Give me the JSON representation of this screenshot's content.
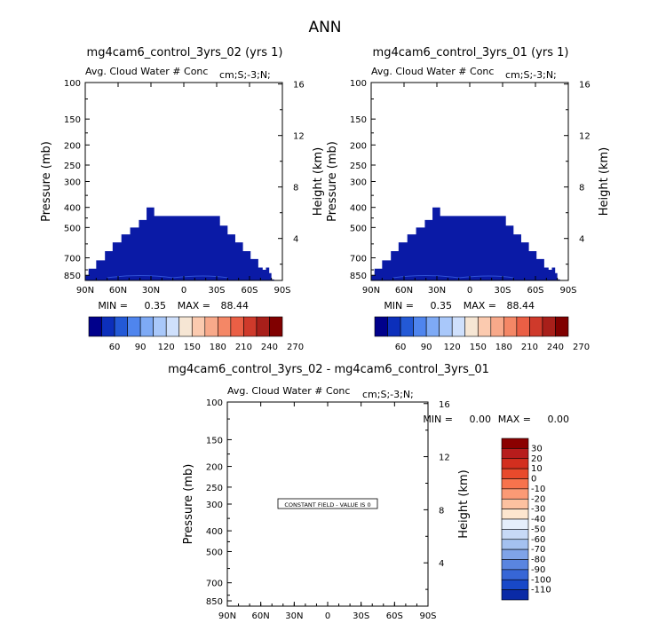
{
  "page_title": "ANN",
  "colors": {
    "fill_dark_blue": "#0a1aa6",
    "fill_contour_blue": "#2f52d6",
    "box_text": "#000000"
  },
  "panels": [
    {
      "title": "mg4cam6_control_3yrs_02 (yrs 1)",
      "subtitle": "Avg. Cloud Water # Conc",
      "units": "cm;S;-3;N;",
      "stats": {
        "min_label": "MIN =",
        "min": "0.35",
        "max_label": "MAX =",
        "max": "88.44"
      }
    },
    {
      "title": "mg4cam6_control_3yrs_01 (yrs 1)",
      "subtitle": "Avg. Cloud Water # Conc",
      "units": "cm;S;-3;N;",
      "stats": {
        "min_label": "MIN =",
        "min": "0.35",
        "max_label": "MAX =",
        "max": "88.44"
      }
    },
    {
      "title": "mg4cam6_control_3yrs_02 - mg4cam6_control_3yrs_01",
      "subtitle": "Avg. Cloud Water # Conc",
      "units": "cm;S;-3;N;",
      "stats": {
        "min_label": "MIN =",
        "min": "0.00",
        "max_label": "MAX =",
        "max": "0.00"
      },
      "note": "CONSTANT FIELD - VALUE IS 0"
    }
  ],
  "chart_data": [
    {
      "type": "heatmap",
      "title": "mg4cam6_control_3yrs_02 (yrs 1)",
      "xlabel": "",
      "ylabel": "Pressure (mb)",
      "y2label": "Height (km)",
      "x_ticks": [
        "90N",
        "60N",
        "30N",
        "0",
        "30S",
        "60S",
        "90S"
      ],
      "y_ticks": [
        100,
        150,
        200,
        250,
        300,
        400,
        500,
        700,
        850
      ],
      "y2_ticks": [
        4,
        8,
        12,
        16
      ],
      "y_scale": "log-pressure",
      "colorbar": {
        "labels": [
          "60",
          "90",
          "120",
          "150",
          "180",
          "210",
          "240",
          "270"
        ],
        "colors": [
          "#00008b",
          "#0c2fbb",
          "#2359d6",
          "#4f85ee",
          "#7eaaf5",
          "#a9c8fa",
          "#cfe0fc",
          "#f6e6d4",
          "#fbcaaf",
          "#f8a98a",
          "#f48766",
          "#ea5f45",
          "#cf3a2b",
          "#a81f1a",
          "#800000"
        ]
      },
      "region_profile": [
        {
          "lat": -90,
          "top_p": 850
        },
        {
          "lat": -87,
          "top_p": 790
        },
        {
          "lat": -80,
          "top_p": 720
        },
        {
          "lat": -72,
          "top_p": 650
        },
        {
          "lat": -65,
          "top_p": 590
        },
        {
          "lat": -57,
          "top_p": 540
        },
        {
          "lat": -49,
          "top_p": 500
        },
        {
          "lat": -41,
          "top_p": 460
        },
        {
          "lat": -34,
          "top_p": 400
        },
        {
          "lat": -27,
          "top_p": 440
        },
        {
          "lat": 26,
          "top_p": 440
        },
        {
          "lat": 33,
          "top_p": 490
        },
        {
          "lat": 40,
          "top_p": 540
        },
        {
          "lat": 47,
          "top_p": 590
        },
        {
          "lat": 54,
          "top_p": 650
        },
        {
          "lat": 61,
          "top_p": 710
        },
        {
          "lat": 68,
          "top_p": 780
        },
        {
          "lat": 72,
          "top_p": 800
        },
        {
          "lat": 75,
          "top_p": 780
        },
        {
          "lat": 78,
          "top_p": 830
        },
        {
          "lat": 80,
          "top_p": 890
        }
      ],
      "stats": {
        "min": 0.35,
        "max": 88.44
      }
    },
    {
      "type": "heatmap",
      "title": "mg4cam6_control_3yrs_01 (yrs 1)",
      "xlabel": "",
      "ylabel": "Pressure (mb)",
      "y2label": "Height (km)",
      "x_ticks": [
        "90N",
        "60N",
        "30N",
        "0",
        "30S",
        "60S",
        "90S"
      ],
      "y_ticks": [
        100,
        150,
        200,
        250,
        300,
        400,
        500,
        700,
        850
      ],
      "y2_ticks": [
        4,
        8,
        12,
        16
      ],
      "y_scale": "log-pressure",
      "colorbar": {
        "labels": [
          "60",
          "90",
          "120",
          "150",
          "180",
          "210",
          "240",
          "270"
        ],
        "colors": [
          "#00008b",
          "#0c2fbb",
          "#2359d6",
          "#4f85ee",
          "#7eaaf5",
          "#a9c8fa",
          "#cfe0fc",
          "#f6e6d4",
          "#fbcaaf",
          "#f8a98a",
          "#f48766",
          "#ea5f45",
          "#cf3a2b",
          "#a81f1a",
          "#800000"
        ]
      },
      "region_profile": [
        {
          "lat": -90,
          "top_p": 850
        },
        {
          "lat": -87,
          "top_p": 790
        },
        {
          "lat": -80,
          "top_p": 720
        },
        {
          "lat": -72,
          "top_p": 650
        },
        {
          "lat": -65,
          "top_p": 590
        },
        {
          "lat": -57,
          "top_p": 540
        },
        {
          "lat": -49,
          "top_p": 500
        },
        {
          "lat": -41,
          "top_p": 460
        },
        {
          "lat": -34,
          "top_p": 400
        },
        {
          "lat": -27,
          "top_p": 440
        },
        {
          "lat": 26,
          "top_p": 440
        },
        {
          "lat": 33,
          "top_p": 490
        },
        {
          "lat": 40,
          "top_p": 540
        },
        {
          "lat": 47,
          "top_p": 590
        },
        {
          "lat": 54,
          "top_p": 650
        },
        {
          "lat": 61,
          "top_p": 710
        },
        {
          "lat": 68,
          "top_p": 780
        },
        {
          "lat": 72,
          "top_p": 800
        },
        {
          "lat": 75,
          "top_p": 780
        },
        {
          "lat": 78,
          "top_p": 830
        },
        {
          "lat": 80,
          "top_p": 890
        }
      ],
      "stats": {
        "min": 0.35,
        "max": 88.44
      }
    },
    {
      "type": "heatmap",
      "title": "mg4cam6_control_3yrs_02 - mg4cam6_control_3yrs_01",
      "xlabel": "",
      "ylabel": "Pressure (mb)",
      "y2label": "Height (km)",
      "x_ticks": [
        "90N",
        "60N",
        "30N",
        "0",
        "30S",
        "60S",
        "90S"
      ],
      "y_ticks": [
        100,
        150,
        200,
        250,
        300,
        400,
        500,
        700,
        850
      ],
      "y2_ticks": [
        4,
        8,
        12,
        16
      ],
      "y_scale": "log-pressure",
      "colorbar": {
        "labels": [
          "30",
          "20",
          "10",
          "0",
          "-10",
          "-20",
          "-30",
          "-40",
          "-50",
          "-60",
          "-70",
          "-80",
          "-90",
          "-100",
          "-110"
        ],
        "colors": [
          "#8b0000",
          "#b71c1c",
          "#d32f1f",
          "#e84a2c",
          "#f7734d",
          "#fb9a75",
          "#fcc1a0",
          "#fde6cf",
          "#e5eefb",
          "#c7d9f6",
          "#a4c1f0",
          "#7fa3e8",
          "#5a85e0",
          "#3766d6",
          "#1848c8",
          "#0a2aa6"
        ]
      },
      "constant_value": 0,
      "stats": {
        "min": 0.0,
        "max": 0.0
      }
    }
  ]
}
